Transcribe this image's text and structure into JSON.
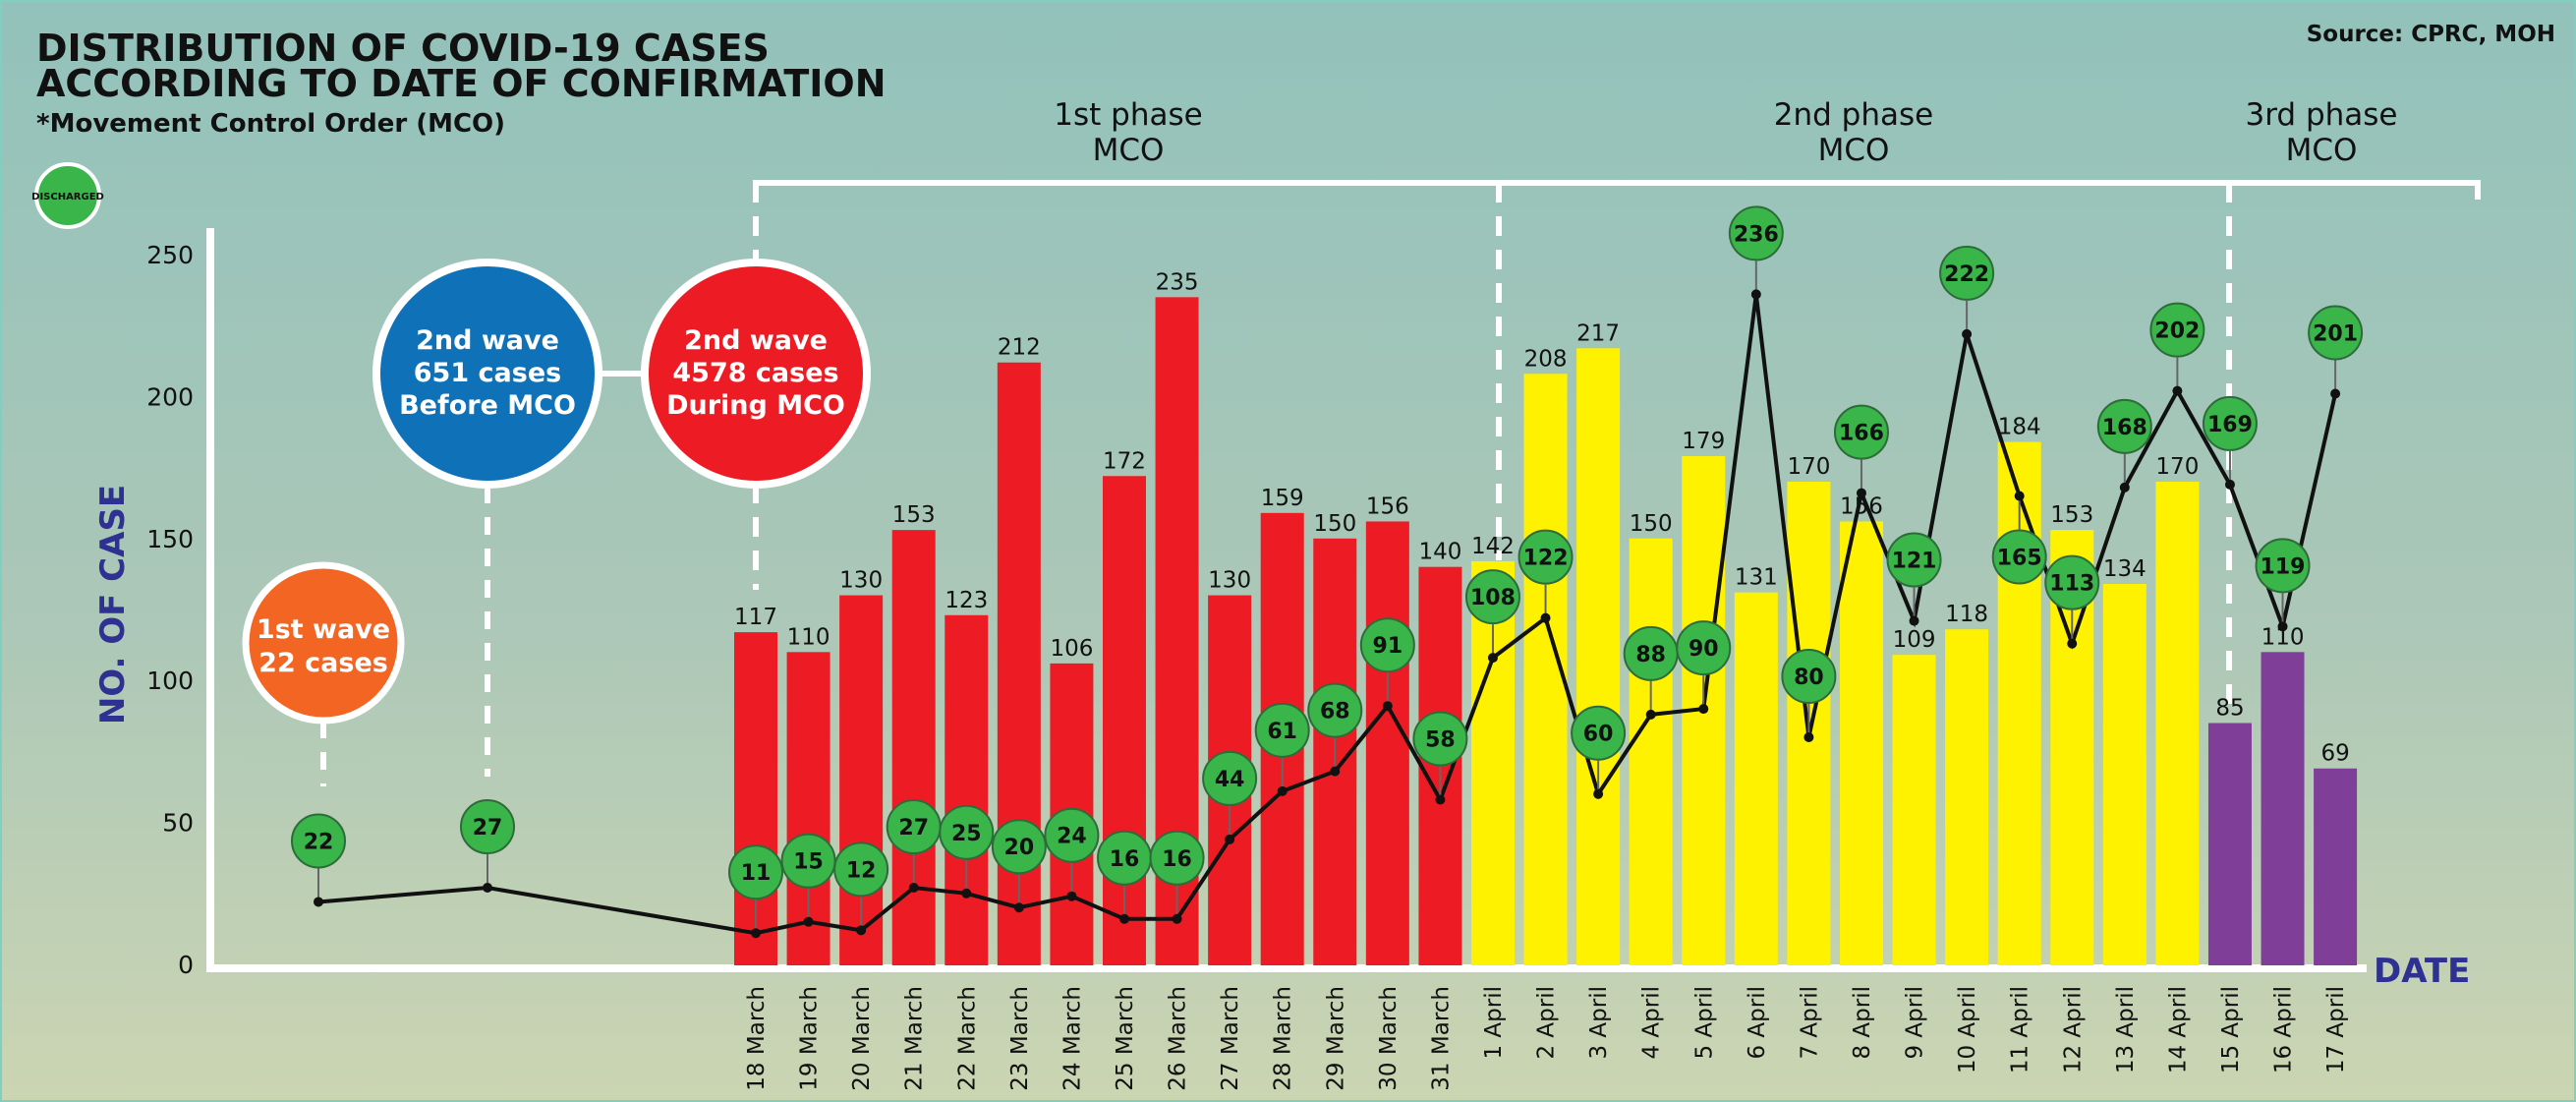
{
  "header": {
    "title_line1": "DISTRIBUTION OF COVID-19 CASES",
    "title_line2": "ACCORDING TO DATE OF CONFIRMATION",
    "subtitle": "*Movement Control Order (MCO)",
    "source": "Source: CPRC, MOH"
  },
  "legend": {
    "discharged_label": "DISCHARGED",
    "discharged_color": "#39b54a"
  },
  "phases": [
    {
      "line1": "1st phase",
      "line2": "MCO"
    },
    {
      "line1": "2nd phase",
      "line2": "MCO"
    },
    {
      "line1": "3rd phase",
      "line2": "MCO"
    }
  ],
  "waves": {
    "first": {
      "line1": "1st wave",
      "line2": "22 cases",
      "color": "#f26522"
    },
    "second_before": {
      "line1": "2nd wave",
      "line2": "651 cases",
      "line3": "Before MCO",
      "color": "#0f72b9"
    },
    "second_during": {
      "line1": "2nd wave",
      "line2": "4578  cases",
      "line3": "During MCO",
      "color": "#ed1c24"
    }
  },
  "chart_data": {
    "type": "bar",
    "ylabel": "NO. OF CASE",
    "xlabel": "DATE",
    "ylim": [
      0,
      250
    ],
    "yticks": [
      "0",
      "50",
      "100",
      "150",
      "200",
      "250"
    ],
    "grid": false,
    "categories": [
      "18 March",
      "19 March",
      "20 March",
      "21 March",
      "22 March",
      "23 March",
      "24 March",
      "25 March",
      "26 March",
      "27 March",
      "28 March",
      "29 March",
      "30 March",
      "31 March",
      "1 April",
      "2 April",
      "3 April",
      "4 April",
      "5 April",
      "6 April",
      "7 April",
      "8 April",
      "9 April",
      "10 April",
      "11 April",
      "12 April",
      "13 April",
      "14 April",
      "15 April",
      "16 April",
      "17 April"
    ],
    "cases": [
      "117",
      "110",
      "130",
      "153",
      "123",
      "212",
      "106",
      "172",
      "235",
      "130",
      "159",
      "150",
      "156",
      "140",
      "142",
      "208",
      "217",
      "150",
      "179",
      "131",
      "170",
      "156",
      "109",
      "118",
      "184",
      "153",
      "134",
      "170",
      "85",
      "110",
      "69"
    ],
    "bar_phase": [
      0,
      0,
      0,
      0,
      0,
      0,
      0,
      0,
      0,
      0,
      0,
      0,
      0,
      0,
      1,
      1,
      1,
      1,
      1,
      1,
      1,
      1,
      1,
      1,
      1,
      1,
      1,
      1,
      2,
      2,
      2
    ],
    "phase_colors": [
      "#ed1c24",
      "#fff200",
      "#7f3f98"
    ],
    "discharged_pre_mco": [
      "22",
      "27"
    ],
    "discharged": [
      "11",
      "15",
      "12",
      "27",
      "25",
      "20",
      "24",
      "16",
      "16",
      "44",
      "61",
      "68",
      "91",
      "58",
      "108",
      "122",
      "60",
      "88",
      "90",
      "236",
      "80",
      "166",
      "121",
      "222",
      "165",
      "113",
      "168",
      "202",
      "169",
      "119",
      "201"
    ]
  }
}
